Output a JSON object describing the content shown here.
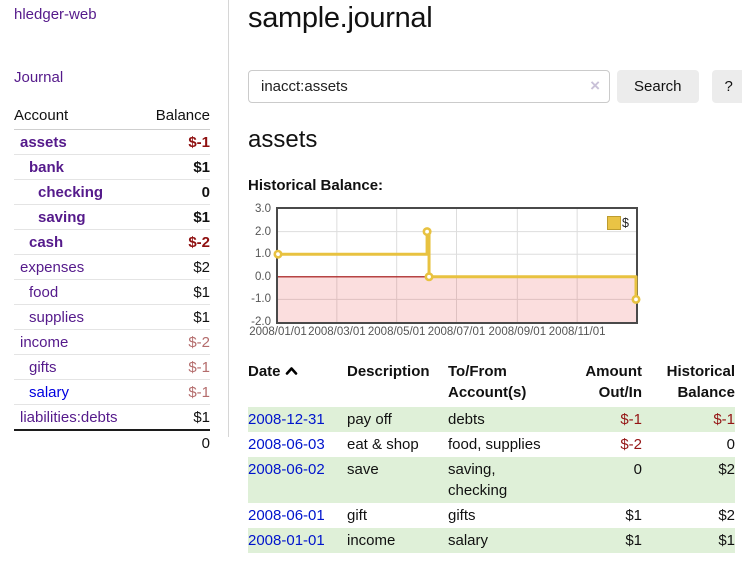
{
  "sidebar": {
    "app_title": "hledger-web",
    "journal_label": "Journal",
    "accounts_table": {
      "headers": {
        "account": "Account",
        "balance": "Balance"
      },
      "rows": [
        {
          "name": "assets",
          "indent": 0,
          "bold": true,
          "name_color": "purple",
          "balance": "$-1",
          "balance_color": "negative-strong"
        },
        {
          "name": "bank",
          "indent": 1,
          "bold": true,
          "name_color": "purple",
          "balance": "$1",
          "balance_color": "normal"
        },
        {
          "name": "checking",
          "indent": 2,
          "bold": true,
          "name_color": "purple",
          "balance": "0",
          "balance_color": "normal"
        },
        {
          "name": "saving",
          "indent": 2,
          "bold": true,
          "name_color": "purple",
          "balance": "$1",
          "balance_color": "normal"
        },
        {
          "name": "cash",
          "indent": 1,
          "bold": true,
          "name_color": "purple",
          "balance": "$-2",
          "balance_color": "negative-strong"
        },
        {
          "name": "expenses",
          "indent": 0,
          "bold": false,
          "name_color": "purple",
          "balance": "$2",
          "balance_color": "normal"
        },
        {
          "name": "food",
          "indent": 1,
          "bold": false,
          "name_color": "purple",
          "balance": "$1",
          "balance_color": "normal"
        },
        {
          "name": "supplies",
          "indent": 1,
          "bold": false,
          "name_color": "purple",
          "balance": "$1",
          "balance_color": "normal"
        },
        {
          "name": "income",
          "indent": 0,
          "bold": false,
          "name_color": "purple",
          "balance": "$-2",
          "balance_color": "negative-soft"
        },
        {
          "name": "gifts",
          "indent": 1,
          "bold": false,
          "name_color": "purple",
          "balance": "$-1",
          "balance_color": "negative-soft"
        },
        {
          "name": "salary",
          "indent": 1,
          "bold": false,
          "name_color": "blue",
          "balance": "$-1",
          "balance_color": "negative-soft"
        },
        {
          "name": "liabilities:debts",
          "indent": 0,
          "bold": false,
          "name_color": "purple",
          "balance": "$1",
          "balance_color": "normal"
        }
      ],
      "total": "0"
    }
  },
  "main": {
    "title": "sample.journal",
    "search": {
      "value": "inacct:assets",
      "clear_icon": "×",
      "button_label": "Search",
      "help_label": "?"
    },
    "account_heading": "assets",
    "chart_label": "Historical Balance:"
  },
  "chart_data": {
    "type": "line",
    "style": "step",
    "title": "Historical Balance",
    "legend": {
      "label": "$",
      "position": "top-right"
    },
    "series": [
      {
        "name": "$",
        "color": "#e8c240",
        "points": [
          {
            "date": "2008-01-01",
            "day": 0,
            "value": 1
          },
          {
            "date": "2008-06-01",
            "day": 152,
            "value": 2
          },
          {
            "date": "2008-06-03",
            "day": 154,
            "value": 0
          },
          {
            "date": "2008-12-31",
            "day": 365,
            "value": -1
          }
        ]
      }
    ],
    "xlim": [
      0,
      365
    ],
    "ylim": [
      -2,
      3
    ],
    "yticks": [
      {
        "value": 3,
        "label": "3.0"
      },
      {
        "value": 2,
        "label": "2.0"
      },
      {
        "value": 1,
        "label": "1.0"
      },
      {
        "value": 0,
        "label": "0.0"
      },
      {
        "value": -1,
        "label": "-1.0"
      },
      {
        "value": -2,
        "label": "-2.0"
      }
    ],
    "xticks": [
      {
        "day": 0,
        "label": "2008/01/01"
      },
      {
        "day": 60,
        "label": "2008/03/01"
      },
      {
        "day": 121,
        "label": "2008/05/01"
      },
      {
        "day": 182,
        "label": "2008/07/01"
      },
      {
        "day": 244,
        "label": "2008/09/01"
      },
      {
        "day": 305,
        "label": "2008/11/01"
      }
    ],
    "grid": true,
    "negative_region_color": "#f9dada",
    "zero_line_color": "#a40c0c"
  },
  "register_table": {
    "headers": [
      {
        "label": "Date",
        "sorted": "ascending",
        "align": "left"
      },
      {
        "label": "Description",
        "align": "left"
      },
      {
        "label": "To/From Account(s)",
        "align": "left"
      },
      {
        "label": "Amount Out/In",
        "align": "right"
      },
      {
        "label": "Historical Balance",
        "align": "right"
      }
    ],
    "rows": [
      {
        "date": "2008-12-31",
        "description": "pay off",
        "accounts": "debts",
        "amount": "$-1",
        "amount_negative": true,
        "balance": "$-1",
        "balance_negative": true,
        "shaded": true
      },
      {
        "date": "2008-06-03",
        "description": "eat & shop",
        "accounts": "food, supplies",
        "amount": "$-2",
        "amount_negative": true,
        "balance": "0",
        "balance_negative": false,
        "shaded": false
      },
      {
        "date": "2008-06-02",
        "description": "save",
        "accounts": "saving, checking",
        "amount": "0",
        "amount_negative": false,
        "balance": "$2",
        "balance_negative": false,
        "shaded": true
      },
      {
        "date": "2008-06-01",
        "description": "gift",
        "accounts": "gifts",
        "amount": "$1",
        "amount_negative": false,
        "balance": "$2",
        "balance_negative": false,
        "shaded": false
      },
      {
        "date": "2008-01-01",
        "description": "income",
        "accounts": "salary",
        "amount": "$1",
        "amount_negative": false,
        "balance": "$1",
        "balance_negative": false,
        "shaded": true
      }
    ]
  }
}
